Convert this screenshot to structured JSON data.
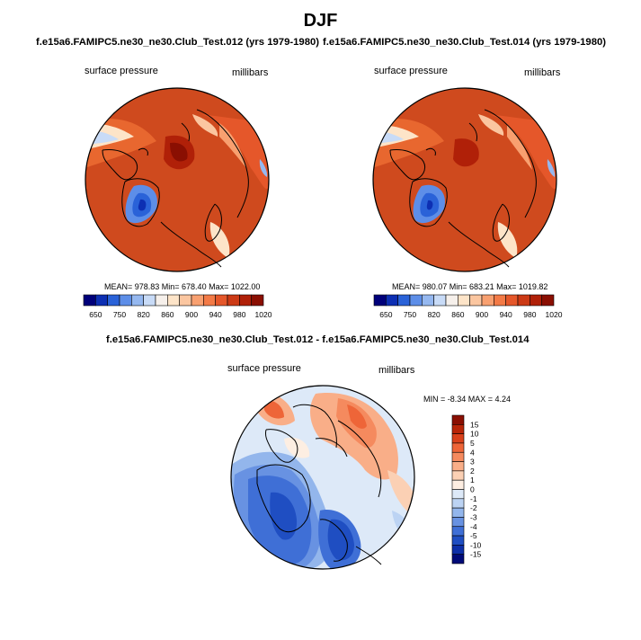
{
  "figure": {
    "title": "DJF"
  },
  "panels": [
    {
      "header": "f.e15a6.FAMIPC5.ne30_ne30.Club_Test.012 (yrs 1979-1980)",
      "field_label": "surface pressure",
      "units_label": "millibars",
      "stats": "MEAN= 978.83  Min= 678.40  Max= 1022.00"
    },
    {
      "header": "f.e15a6.FAMIPC5.ne30_ne30.Club_Test.014 (yrs 1979-1980)",
      "field_label": "surface pressure",
      "units_label": "millibars",
      "stats": "MEAN= 980.07  Min= 683.21  Max= 1019.82"
    },
    {
      "header": "f.e15a6.FAMIPC5.ne30_ne30.Club_Test.012 - f.e15a6.FAMIPC5.ne30_ne30.Club_Test.014",
      "field_label": "surface pressure",
      "units_label": "millibars",
      "stats": "MIN =  -8.34 MAX =   4.24"
    }
  ],
  "abs_colorbar": {
    "labels": [
      "650",
      "750",
      "820",
      "860",
      "900",
      "940",
      "980",
      "1020"
    ],
    "colors": [
      "#00007a",
      "#0d2fb3",
      "#2a62d8",
      "#5d8ee8",
      "#95b8f0",
      "#c8dbf7",
      "#f6f0eb",
      "#fde4c8",
      "#fbc6a0",
      "#f8a070",
      "#f37a46",
      "#e5572a",
      "#cc3a15",
      "#b02008",
      "#8a0f02"
    ]
  },
  "diff_colorbar": {
    "labels": [
      "15",
      "10",
      "5",
      "4",
      "3",
      "2",
      "1",
      "0",
      "-1",
      "-2",
      "-3",
      "-4",
      "-5",
      "-10",
      "-15"
    ],
    "colors": [
      "#8a0f02",
      "#b82508",
      "#d9411b",
      "#ee6538",
      "#f58a5e",
      "#f9ae88",
      "#fbd0b4",
      "#fdeee2",
      "#dde9f8",
      "#bcd3f3",
      "#93b6ec",
      "#6892e2",
      "#3f6fd6",
      "#1f4ec2",
      "#0d2fa8",
      "#000a78"
    ]
  }
}
